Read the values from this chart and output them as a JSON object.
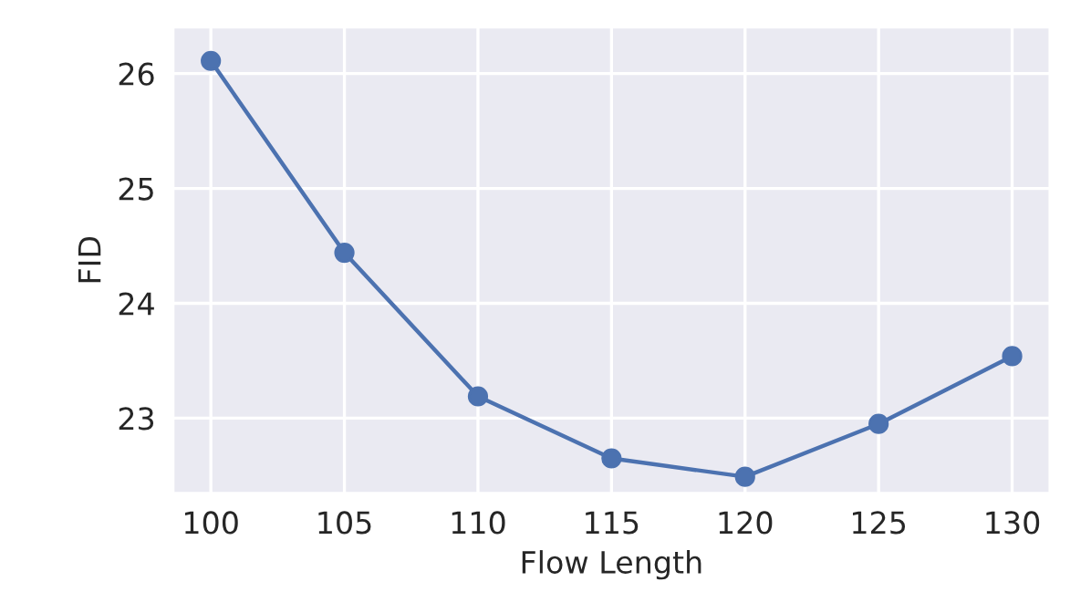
{
  "chart_data": {
    "type": "line",
    "xlabel": "Flow Length",
    "ylabel": "FID",
    "x": [
      100,
      105,
      110,
      115,
      120,
      125,
      130
    ],
    "series": [
      {
        "color": "#4c72b0",
        "values": [
          26.11,
          24.44,
          23.19,
          22.65,
          22.49,
          22.95,
          23.54
        ]
      }
    ],
    "xlim": [
      98.6,
      131.4
    ],
    "xticks": [
      100,
      105,
      110,
      115,
      120,
      125,
      130
    ],
    "ylim": [
      22.35,
      26.4
    ],
    "yticks": [
      23,
      24,
      25,
      26
    ],
    "grid": true,
    "marker": "circle",
    "line_style": "solid"
  }
}
